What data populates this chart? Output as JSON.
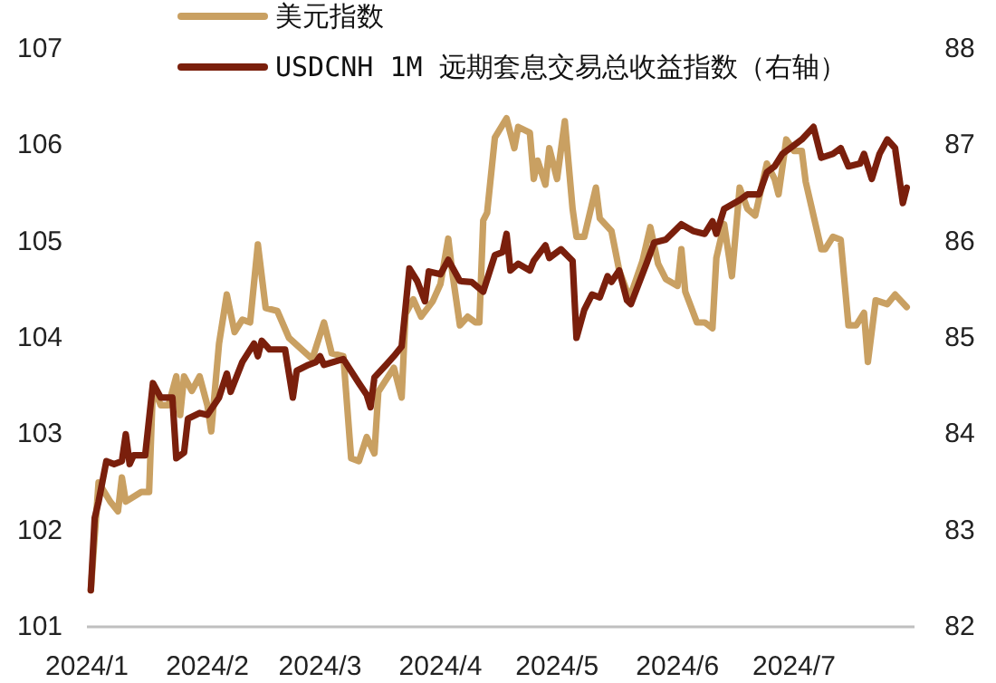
{
  "chart_data": {
    "type": "line",
    "xlim": [
      "2024-01-01",
      "2024-08-01"
    ],
    "xticks": [
      {
        "value": "2024-01-01",
        "label": "2024/1"
      },
      {
        "value": "2024-02-01",
        "label": "2024/2"
      },
      {
        "value": "2024-03-01",
        "label": "2024/3"
      },
      {
        "value": "2024-04-01",
        "label": "2024/4"
      },
      {
        "value": "2024-05-01",
        "label": "2024/5"
      },
      {
        "value": "2024-06-01",
        "label": "2024/6"
      },
      {
        "value": "2024-07-01",
        "label": "2024/7"
      }
    ],
    "ylim": [
      101,
      107
    ],
    "yticks": [
      101,
      102,
      103,
      104,
      105,
      106,
      107
    ],
    "y2lim": [
      82,
      88
    ],
    "y2ticks": [
      82,
      83,
      84,
      85,
      86,
      87,
      88
    ],
    "legend": "top left",
    "series": [
      {
        "name": "美元指数",
        "color": "#c9a062",
        "x": [
          "2024-01-02",
          "2024-01-04",
          "2024-01-07",
          "2024-01-09",
          "2024-01-10",
          "2024-01-11",
          "2024-01-15",
          "2024-01-17",
          "2024-01-18",
          "2024-01-20",
          "2024-01-22",
          "2024-01-24",
          "2024-01-25",
          "2024-01-26",
          "2024-01-28",
          "2024-01-30",
          "2024-02-01",
          "2024-02-02",
          "2024-02-04",
          "2024-02-06",
          "2024-02-08",
          "2024-02-10",
          "2024-02-12",
          "2024-02-14",
          "2024-02-16",
          "2024-02-19",
          "2024-02-22",
          "2024-02-28",
          "2024-03-02",
          "2024-03-04",
          "2024-03-07",
          "2024-03-09",
          "2024-03-11",
          "2024-03-13",
          "2024-03-15",
          "2024-03-16",
          "2024-03-20",
          "2024-03-22",
          "2024-03-23",
          "2024-03-25",
          "2024-03-27",
          "2024-03-30",
          "2024-04-01",
          "2024-04-03",
          "2024-04-04",
          "2024-04-06",
          "2024-04-08",
          "2024-04-10",
          "2024-04-11",
          "2024-04-12",
          "2024-04-13",
          "2024-04-15",
          "2024-04-18",
          "2024-04-20",
          "2024-04-21",
          "2024-04-24",
          "2024-04-25",
          "2024-04-26",
          "2024-04-28",
          "2024-04-29",
          "2024-05-01",
          "2024-05-03",
          "2024-05-05",
          "2024-05-06",
          "2024-05-08",
          "2024-05-11",
          "2024-05-12",
          "2024-05-15",
          "2024-05-17",
          "2024-05-19",
          "2024-05-20",
          "2024-05-23",
          "2024-05-25",
          "2024-05-27",
          "2024-05-29",
          "2024-06-01",
          "2024-06-02",
          "2024-06-03",
          "2024-06-06",
          "2024-06-08",
          "2024-06-10",
          "2024-06-11",
          "2024-06-13",
          "2024-06-15",
          "2024-06-17",
          "2024-06-19",
          "2024-06-21",
          "2024-06-24",
          "2024-06-26",
          "2024-06-27",
          "2024-06-29",
          "2024-07-01",
          "2024-07-03",
          "2024-07-04",
          "2024-07-08",
          "2024-07-09",
          "2024-07-11",
          "2024-07-13",
          "2024-07-15",
          "2024-07-17",
          "2024-07-19",
          "2024-07-20",
          "2024-07-22",
          "2024-07-25",
          "2024-07-27",
          "2024-07-30"
        ],
        "values": [
          101.38,
          102.5,
          102.3,
          102.2,
          102.55,
          102.3,
          102.4,
          102.4,
          103.5,
          103.3,
          103.3,
          103.6,
          103.2,
          103.6,
          103.45,
          103.6,
          103.3,
          103.03,
          103.94,
          104.45,
          104.06,
          104.19,
          104.16,
          104.97,
          104.31,
          104.28,
          104.0,
          103.78,
          104.16,
          103.84,
          103.81,
          102.75,
          102.72,
          102.97,
          102.8,
          103.44,
          103.69,
          103.38,
          104.25,
          104.4,
          104.22,
          104.38,
          104.56,
          105.03,
          104.69,
          104.13,
          104.22,
          104.16,
          104.16,
          105.22,
          105.3,
          106.08,
          106.28,
          105.97,
          106.19,
          106.13,
          105.65,
          105.84,
          105.59,
          105.97,
          105.65,
          106.25,
          105.34,
          105.05,
          105.05,
          105.56,
          105.24,
          105.11,
          104.7,
          104.48,
          104.45,
          104.8,
          105.15,
          104.77,
          104.61,
          104.54,
          104.92,
          104.48,
          104.16,
          104.16,
          104.1,
          104.83,
          105.18,
          104.64,
          105.56,
          105.34,
          105.27,
          105.81,
          105.65,
          105.49,
          106.06,
          105.94,
          105.94,
          105.62,
          104.92,
          104.92,
          105.05,
          105.02,
          104.13,
          104.13,
          104.26,
          103.75,
          104.39,
          104.35,
          104.45,
          104.32
        ]
      },
      {
        "name": "USDCNH 1M 远期套息交易总收益指数（右轴）",
        "color": "#7a1f0c",
        "axis": "y2",
        "x": [
          "2024-01-02",
          "2024-01-03",
          "2024-01-04",
          "2024-01-06",
          "2024-01-08",
          "2024-01-10",
          "2024-01-11",
          "2024-01-12",
          "2024-01-13",
          "2024-01-16",
          "2024-01-18",
          "2024-01-20",
          "2024-01-23",
          "2024-01-24",
          "2024-01-26",
          "2024-01-27",
          "2024-01-30",
          "2024-02-01",
          "2024-02-04",
          "2024-02-06",
          "2024-02-07",
          "2024-02-10",
          "2024-02-13",
          "2024-02-14",
          "2024-02-15",
          "2024-02-17",
          "2024-02-21",
          "2024-02-23",
          "2024-02-24",
          "2024-02-27",
          "2024-02-29",
          "2024-03-01",
          "2024-03-02",
          "2024-03-07",
          "2024-03-11",
          "2024-03-13",
          "2024-03-14",
          "2024-03-15",
          "2024-03-18",
          "2024-03-20",
          "2024-03-22",
          "2024-03-24",
          "2024-03-26",
          "2024-03-28",
          "2024-03-29",
          "2024-04-01",
          "2024-04-03",
          "2024-04-06",
          "2024-04-09",
          "2024-04-12",
          "2024-04-15",
          "2024-04-17",
          "2024-04-18",
          "2024-04-19",
          "2024-04-21",
          "2024-04-24",
          "2024-04-25",
          "2024-04-28",
          "2024-04-29",
          "2024-05-02",
          "2024-05-05",
          "2024-05-06",
          "2024-05-08",
          "2024-05-10",
          "2024-05-12",
          "2024-05-14",
          "2024-05-15",
          "2024-05-17",
          "2024-05-19",
          "2024-05-20",
          "2024-05-24",
          "2024-05-26",
          "2024-05-29",
          "2024-06-02",
          "2024-06-05",
          "2024-06-08",
          "2024-06-10",
          "2024-06-11",
          "2024-06-13",
          "2024-06-17",
          "2024-06-19",
          "2024-06-22",
          "2024-06-24",
          "2024-06-26",
          "2024-06-28",
          "2024-07-01",
          "2024-07-03",
          "2024-07-06",
          "2024-07-08",
          "2024-07-11",
          "2024-07-13",
          "2024-07-15",
          "2024-07-18",
          "2024-07-19",
          "2024-07-21",
          "2024-07-23",
          "2024-07-25",
          "2024-07-27",
          "2024-07-29",
          "2024-07-30"
        ],
        "values": [
          82.38,
          83.13,
          83.3,
          83.72,
          83.69,
          83.72,
          84.0,
          83.69,
          83.78,
          83.78,
          84.53,
          84.38,
          84.38,
          83.75,
          83.81,
          84.16,
          84.22,
          84.2,
          84.38,
          84.63,
          84.44,
          84.75,
          84.94,
          84.81,
          84.97,
          84.88,
          84.88,
          84.38,
          84.66,
          84.72,
          84.75,
          84.81,
          84.72,
          84.78,
          84.53,
          84.41,
          84.28,
          84.59,
          84.72,
          84.81,
          84.91,
          85.72,
          85.59,
          85.38,
          85.69,
          85.66,
          85.81,
          85.59,
          85.58,
          85.48,
          85.86,
          85.89,
          86.08,
          85.7,
          85.77,
          85.7,
          85.8,
          85.96,
          85.83,
          85.92,
          85.8,
          85.0,
          85.29,
          85.45,
          85.42,
          85.64,
          85.58,
          85.7,
          85.39,
          85.35,
          85.77,
          85.99,
          86.02,
          86.18,
          86.11,
          86.08,
          86.21,
          86.08,
          86.34,
          86.43,
          86.49,
          86.49,
          86.72,
          86.78,
          86.91,
          87.0,
          87.06,
          87.19,
          86.87,
          86.91,
          86.97,
          86.78,
          86.81,
          86.91,
          86.65,
          86.91,
          87.06,
          86.97,
          86.4,
          86.56
        ]
      }
    ]
  }
}
